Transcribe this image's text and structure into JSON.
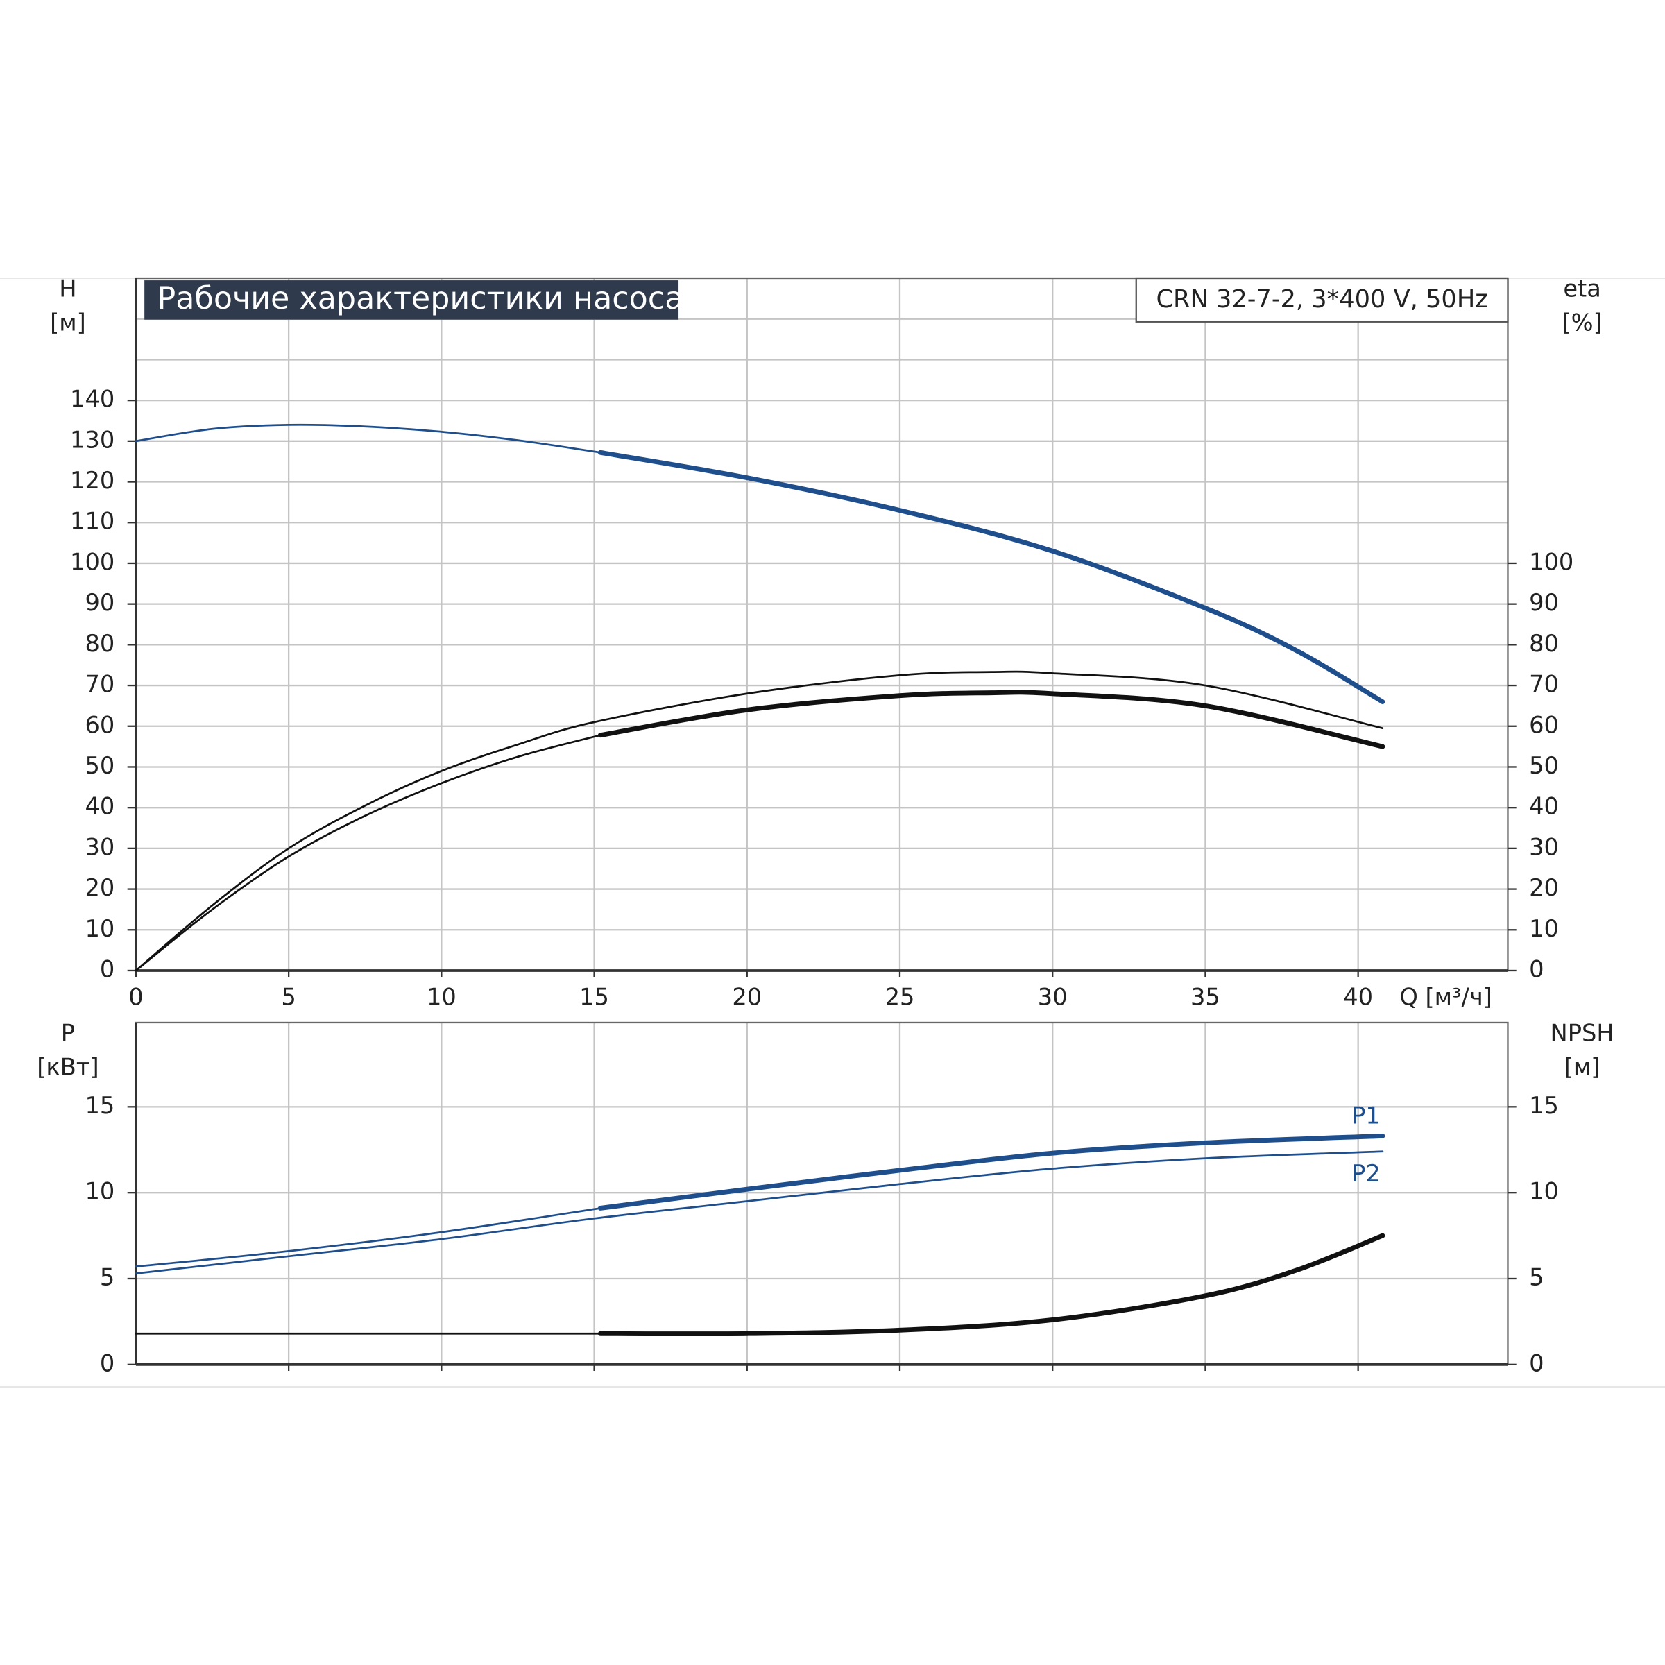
{
  "chart_data": [
    {
      "type": "line",
      "title": "Рабочие характеристики насоса",
      "annotation": "CRN 32-7-2, 3*400 V, 50Hz",
      "xlabel": "Q [м³/ч]",
      "ylabel": "H",
      "yunit": "[м]",
      "y2label": "eta",
      "y2unit": "[%]",
      "xlim": [
        0,
        44.9
      ],
      "xticks": [
        0,
        5,
        10,
        15,
        20,
        25,
        30,
        35,
        40
      ],
      "ylim": [
        0,
        170
      ],
      "yticks": [
        0,
        10,
        20,
        30,
        40,
        50,
        60,
        70,
        80,
        90,
        100,
        110,
        120,
        130,
        140
      ],
      "ygrid_extra": [
        150,
        160
      ],
      "y2lim": [
        0,
        170
      ],
      "y2ticks": [
        0,
        10,
        20,
        30,
        40,
        50,
        60,
        70,
        80,
        90,
        100
      ],
      "grid": true,
      "series": [
        {
          "color": "#1f4e8c",
          "bold": false,
          "x": [
            0,
            2.5,
            5,
            7.5,
            10,
            12.5,
            15.2
          ],
          "values": [
            130,
            133,
            134,
            133.6,
            132.3,
            130.2,
            127.2
          ]
        },
        {
          "color": "#1f4e8c",
          "bold": true,
          "x": [
            15.2,
            20,
            25,
            30,
            35,
            38,
            40.8
          ],
          "values": [
            127.2,
            121,
            113,
            103,
            89,
            78.5,
            66
          ]
        },
        {
          "color": "#111111",
          "bold": false,
          "x": [
            0,
            2.5,
            5,
            7.5,
            10,
            12.5,
            15,
            20,
            25,
            28,
            30,
            35,
            40.8
          ],
          "values": [
            0,
            16,
            30,
            40.5,
            49,
            55.5,
            61,
            68,
            72.5,
            73.3,
            73,
            70,
            59.5
          ]
        },
        {
          "color": "#111111",
          "bold": false,
          "x": [
            0,
            2.5,
            5,
            7.5,
            10,
            12.5,
            15.2
          ],
          "values": [
            0,
            15,
            28,
            38,
            46,
            52.5,
            57.8
          ]
        },
        {
          "color": "#111111",
          "bold": true,
          "x": [
            15.2,
            20,
            25,
            28,
            30,
            35,
            40.8
          ],
          "values": [
            57.8,
            64,
            67.5,
            68.2,
            68,
            65,
            55
          ]
        }
      ]
    },
    {
      "type": "line",
      "ylabel": "P",
      "yunit": "[кВт]",
      "y2label": "NPSH",
      "y2unit": "[м]",
      "xlim": [
        0,
        44.9
      ],
      "xgrid": [
        5,
        10,
        15,
        20,
        25,
        30,
        35,
        40
      ],
      "ylim": [
        0,
        19.9
      ],
      "yticks": [
        0,
        5,
        10,
        15
      ],
      "y2lim": [
        0,
        19.9
      ],
      "y2ticks": [
        0,
        5,
        10,
        15
      ],
      "grid": true,
      "series": [
        {
          "color": "#1f4e8c",
          "bold": false,
          "x": [
            0,
            5,
            10,
            15.2
          ],
          "values": [
            5.7,
            6.6,
            7.7,
            9.1
          ]
        },
        {
          "name": "P1",
          "label_position": "above",
          "color": "#1f4e8c",
          "bold": true,
          "x": [
            15.2,
            20,
            25,
            30,
            35,
            40.8
          ],
          "values": [
            9.1,
            10.2,
            11.3,
            12.3,
            12.9,
            13.3
          ]
        },
        {
          "name": "P2",
          "label_position": "below",
          "color": "#1f4e8c",
          "bold": false,
          "x": [
            0,
            5,
            10,
            15,
            20,
            25,
            30,
            35,
            40.8
          ],
          "values": [
            5.3,
            6.3,
            7.3,
            8.5,
            9.5,
            10.5,
            11.4,
            12.0,
            12.4
          ]
        },
        {
          "color": "#111111",
          "bold": false,
          "axis": "y2",
          "x": [
            0,
            15.2
          ],
          "values": [
            1.8,
            1.8
          ]
        },
        {
          "color": "#111111",
          "bold": true,
          "axis": "y2",
          "x": [
            15.2,
            20,
            25,
            30,
            35,
            38,
            40.8
          ],
          "values": [
            1.8,
            1.8,
            2.0,
            2.6,
            4.0,
            5.5,
            7.5
          ]
        }
      ]
    }
  ]
}
